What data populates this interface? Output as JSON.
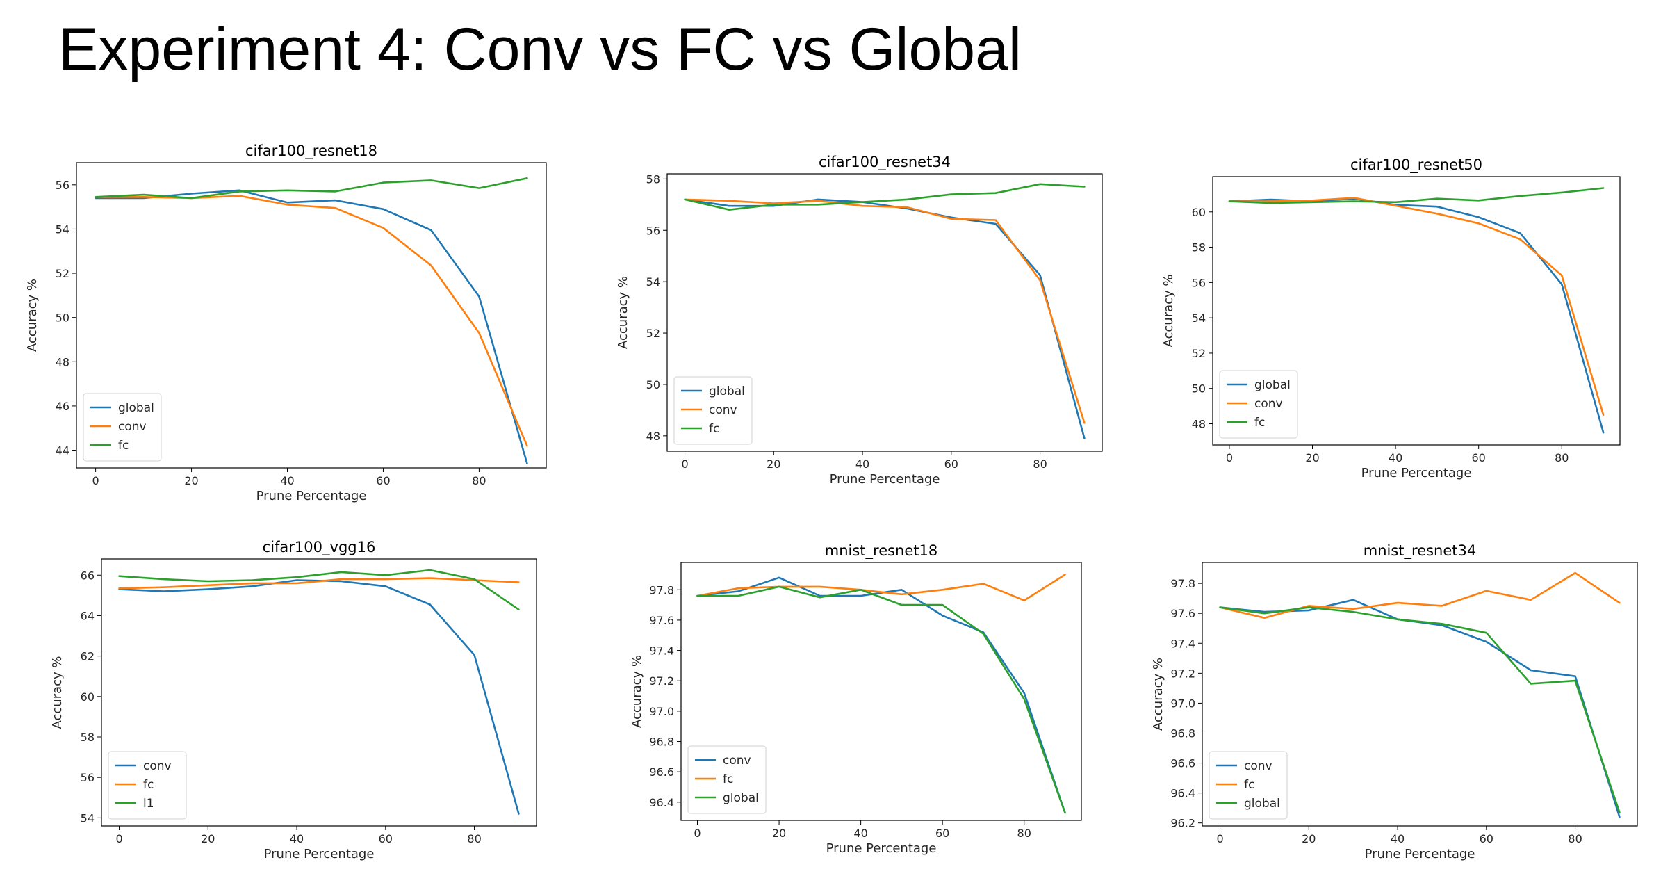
{
  "page_title": "Experiment 4: Conv vs FC vs Global",
  "colors": {
    "blue": "#1f77b4",
    "orange": "#ff7f0e",
    "green": "#2ca02c"
  },
  "chart_data": [
    {
      "type": "line",
      "title": "cifar100_resnet18",
      "xlabel": "Prune Percentage",
      "ylabel": "Accuracy %",
      "xlim": [
        -4,
        94
      ],
      "ylim": [
        43.2,
        57.0
      ],
      "xticks": [
        0,
        20,
        40,
        60,
        80
      ],
      "yticks": [
        44,
        46,
        48,
        50,
        52,
        54,
        56
      ],
      "legend_position": "lower-left",
      "grid": false,
      "x": [
        0,
        10,
        20,
        30,
        40,
        50,
        60,
        70,
        80,
        90
      ],
      "series": [
        {
          "name": "global",
          "color": "#1f77b4",
          "values": [
            55.4,
            55.4,
            55.6,
            55.75,
            55.2,
            55.3,
            54.9,
            53.95,
            50.95,
            43.4
          ]
        },
        {
          "name": "conv",
          "color": "#ff7f0e",
          "values": [
            55.45,
            55.45,
            55.4,
            55.5,
            55.1,
            54.95,
            54.05,
            52.35,
            49.3,
            44.2
          ]
        },
        {
          "name": "fc",
          "color": "#2ca02c",
          "values": [
            55.45,
            55.55,
            55.4,
            55.7,
            55.75,
            55.7,
            56.1,
            56.2,
            55.85,
            56.3
          ]
        }
      ]
    },
    {
      "type": "line",
      "title": "cifar100_resnet34",
      "xlabel": "Prune Percentage",
      "ylabel": "Accuracy %",
      "xlim": [
        -4,
        94
      ],
      "ylim": [
        47.4,
        58.2
      ],
      "xticks": [
        0,
        20,
        40,
        60,
        80
      ],
      "yticks": [
        48,
        50,
        52,
        54,
        56,
        58
      ],
      "legend_position": "lower-left",
      "grid": false,
      "x": [
        0,
        10,
        20,
        30,
        40,
        50,
        60,
        70,
        80,
        90
      ],
      "series": [
        {
          "name": "global",
          "color": "#1f77b4",
          "values": [
            57.2,
            56.95,
            56.95,
            57.2,
            57.1,
            56.85,
            56.5,
            56.25,
            54.25,
            47.9
          ]
        },
        {
          "name": "conv",
          "color": "#ff7f0e",
          "values": [
            57.2,
            57.15,
            57.05,
            57.15,
            56.95,
            56.9,
            56.45,
            56.4,
            54.05,
            48.5
          ]
        },
        {
          "name": "fc",
          "color": "#2ca02c",
          "values": [
            57.2,
            56.8,
            57.0,
            57.0,
            57.1,
            57.2,
            57.4,
            57.45,
            57.8,
            57.7
          ]
        }
      ]
    },
    {
      "type": "line",
      "title": "cifar100_resnet50",
      "xlabel": "Prune Percentage",
      "ylabel": "Accuracy %",
      "xlim": [
        -4,
        94
      ],
      "ylim": [
        46.8,
        62.0
      ],
      "xticks": [
        0,
        20,
        40,
        60,
        80
      ],
      "yticks": [
        48,
        50,
        52,
        54,
        56,
        58,
        60
      ],
      "legend_position": "lower-left",
      "grid": false,
      "x": [
        0,
        10,
        20,
        30,
        40,
        50,
        60,
        70,
        80,
        90
      ],
      "series": [
        {
          "name": "global",
          "color": "#1f77b4",
          "values": [
            60.6,
            60.7,
            60.6,
            60.75,
            60.4,
            60.3,
            59.7,
            58.8,
            55.9,
            47.5
          ]
        },
        {
          "name": "conv",
          "color": "#ff7f0e",
          "values": [
            60.6,
            60.6,
            60.65,
            60.8,
            60.35,
            59.9,
            59.35,
            58.45,
            56.4,
            48.5
          ]
        },
        {
          "name": "fc",
          "color": "#2ca02c",
          "values": [
            60.6,
            60.5,
            60.55,
            60.6,
            60.55,
            60.75,
            60.65,
            60.9,
            61.1,
            61.35
          ]
        }
      ]
    },
    {
      "type": "line",
      "title": "cifar100_vgg16",
      "xlabel": "Prune Percentage",
      "ylabel": "Accuracy %",
      "xlim": [
        -4,
        94
      ],
      "ylim": [
        53.6,
        66.8
      ],
      "xticks": [
        0,
        20,
        40,
        60,
        80
      ],
      "yticks": [
        54,
        56,
        58,
        60,
        62,
        64,
        66
      ],
      "legend_position": "lower-left",
      "grid": false,
      "x": [
        0,
        10,
        20,
        30,
        40,
        50,
        60,
        70,
        80,
        90
      ],
      "series": [
        {
          "name": "conv",
          "color": "#1f77b4",
          "values": [
            65.3,
            65.2,
            65.3,
            65.45,
            65.75,
            65.7,
            65.45,
            64.55,
            62.05,
            54.2
          ]
        },
        {
          "name": "fc",
          "color": "#ff7f0e",
          "values": [
            65.35,
            65.4,
            65.5,
            65.6,
            65.6,
            65.8,
            65.8,
            65.85,
            65.75,
            65.65
          ]
        },
        {
          "name": "l1",
          "color": "#2ca02c",
          "values": [
            65.95,
            65.8,
            65.7,
            65.75,
            65.9,
            66.15,
            66.0,
            66.25,
            65.8,
            64.3
          ]
        }
      ]
    },
    {
      "type": "line",
      "title": "mnist_resnet18",
      "xlabel": "Prune Percentage",
      "ylabel": "Accuracy %",
      "xlim": [
        -4,
        94
      ],
      "ylim": [
        96.28,
        97.98
      ],
      "xticks": [
        0,
        20,
        40,
        60,
        80
      ],
      "yticks": [
        96.4,
        96.6,
        96.8,
        97.0,
        97.2,
        97.4,
        97.6,
        97.8
      ],
      "legend_position": "lower-left",
      "grid": false,
      "x": [
        0,
        10,
        20,
        30,
        40,
        50,
        60,
        70,
        80,
        90
      ],
      "series": [
        {
          "name": "conv",
          "color": "#1f77b4",
          "values": [
            97.76,
            97.79,
            97.88,
            97.76,
            97.76,
            97.8,
            97.63,
            97.52,
            97.12,
            96.33
          ]
        },
        {
          "name": "fc",
          "color": "#ff7f0e",
          "values": [
            97.76,
            97.81,
            97.82,
            97.82,
            97.8,
            97.77,
            97.8,
            97.84,
            97.73,
            97.9
          ]
        },
        {
          "name": "global",
          "color": "#2ca02c",
          "values": [
            97.76,
            97.76,
            97.82,
            97.75,
            97.8,
            97.7,
            97.7,
            97.51,
            97.08,
            96.33
          ]
        }
      ]
    },
    {
      "type": "line",
      "title": "mnist_resnet34",
      "xlabel": "Prune Percentage",
      "ylabel": "Accuracy %",
      "xlim": [
        -4,
        94
      ],
      "ylim": [
        96.18,
        97.94
      ],
      "xticks": [
        0,
        20,
        40,
        60,
        80
      ],
      "yticks": [
        96.2,
        96.4,
        96.6,
        96.8,
        97.0,
        97.2,
        97.4,
        97.6,
        97.8
      ],
      "legend_position": "lower-left",
      "grid": false,
      "x": [
        0,
        10,
        20,
        30,
        40,
        50,
        60,
        70,
        80,
        90
      ],
      "series": [
        {
          "name": "conv",
          "color": "#1f77b4",
          "values": [
            97.64,
            97.61,
            97.62,
            97.69,
            97.56,
            97.52,
            97.41,
            97.22,
            97.18,
            96.24
          ]
        },
        {
          "name": "fc",
          "color": "#ff7f0e",
          "values": [
            97.64,
            97.57,
            97.65,
            97.63,
            97.67,
            97.65,
            97.75,
            97.69,
            97.87,
            97.67
          ]
        },
        {
          "name": "global",
          "color": "#2ca02c",
          "values": [
            97.64,
            97.6,
            97.64,
            97.61,
            97.56,
            97.53,
            97.47,
            97.13,
            97.15,
            96.27
          ]
        }
      ]
    }
  ]
}
